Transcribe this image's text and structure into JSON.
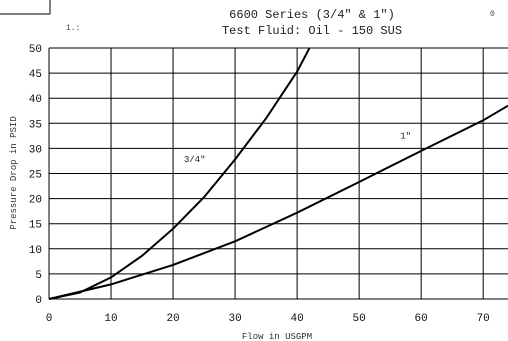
{
  "chart_data": {
    "type": "line",
    "title": "6600 Series (3/4\" & 1\")",
    "subtitle": "Test Fluid: Oil - 150 SUS",
    "xlabel": "Flow in USGPM",
    "ylabel": "Pressure Drop in PSID",
    "xlim": [
      0,
      74
    ],
    "ylim": [
      0,
      50
    ],
    "xticks": [
      0,
      10,
      20,
      30,
      40,
      50,
      60,
      70
    ],
    "yticks": [
      0,
      5,
      10,
      15,
      20,
      25,
      30,
      35,
      40,
      45,
      50
    ],
    "grid": true,
    "series": [
      {
        "name": "3/4\"",
        "x": [
          0,
          5,
          10,
          15,
          20,
          25,
          30,
          35,
          40,
          42
        ],
        "y": [
          0,
          1.3,
          4.3,
          8.6,
          14.0,
          20.3,
          27.8,
          36.0,
          45.3,
          50
        ]
      },
      {
        "name": "1\"",
        "x": [
          0,
          10,
          20,
          30,
          40,
          50,
          60,
          70,
          74
        ],
        "y": [
          0,
          2.9,
          6.8,
          11.5,
          17.2,
          23.3,
          29.5,
          35.6,
          38.5
        ]
      }
    ],
    "annotations": [
      "1.:",
      "0"
    ]
  }
}
